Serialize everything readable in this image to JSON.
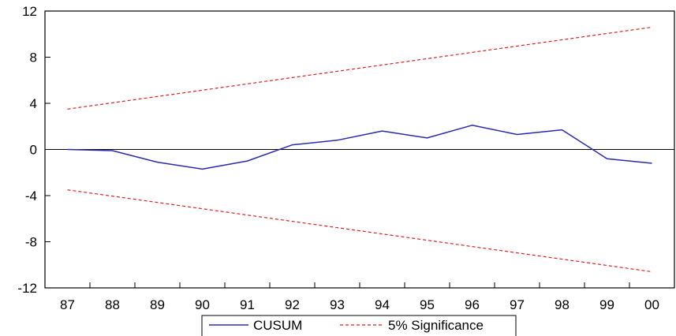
{
  "chart_data": {
    "type": "line",
    "title": "",
    "xlabel": "",
    "ylabel": "",
    "x": [
      "87",
      "88",
      "89",
      "90",
      "91",
      "92",
      "93",
      "94",
      "95",
      "96",
      "97",
      "98",
      "99",
      "00"
    ],
    "ylim": [
      -12,
      12
    ],
    "yticks": [
      12,
      8,
      4,
      0,
      -4,
      -8,
      -12
    ],
    "ytick_labels": [
      "12",
      "8",
      "4",
      "0",
      "-4",
      "-8",
      "-12"
    ],
    "zero_line": true,
    "grid": false,
    "legend_position": "bottom-center",
    "series": [
      {
        "name": "CUSUM",
        "color": "#2a2ab0",
        "style": "solid",
        "x": [
          87,
          88,
          89,
          90,
          91,
          92,
          93,
          94,
          95,
          96,
          97,
          98,
          99,
          100
        ],
        "values": [
          0.0,
          -0.1,
          -1.1,
          -1.7,
          -1.0,
          0.4,
          0.8,
          1.6,
          1.0,
          2.1,
          1.3,
          1.7,
          -0.8,
          -1.2
        ]
      },
      {
        "name": "5% Significance",
        "color": "#e0201a",
        "style": "dashed",
        "x": [
          87,
          100
        ],
        "values": [
          3.5,
          10.6
        ]
      },
      {
        "name": "",
        "color": "#e0201a",
        "style": "dashed",
        "x": [
          87,
          100
        ],
        "values": [
          -3.5,
          -10.6
        ]
      }
    ]
  }
}
